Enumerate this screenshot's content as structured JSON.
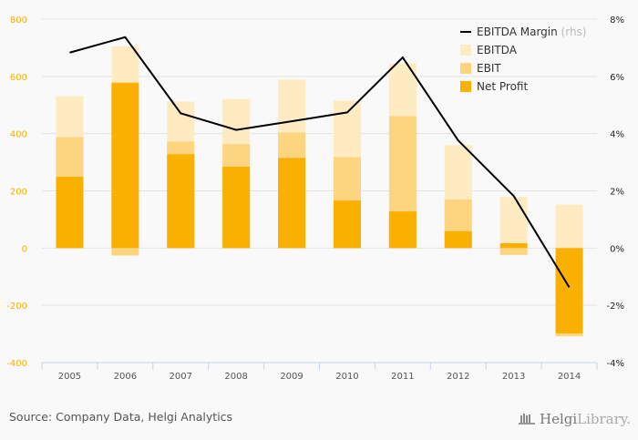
{
  "chart_data": {
    "type": "bar",
    "categories": [
      "2005",
      "2006",
      "2007",
      "2008",
      "2009",
      "2010",
      "2011",
      "2012",
      "2013",
      "2014"
    ],
    "series": [
      {
        "name": "EBITDA",
        "axis": "left",
        "kind": "bar",
        "color": "#ffebc2",
        "values": [
          531,
          705,
          512,
          521,
          588,
          515,
          645,
          360,
          179,
          152
        ]
      },
      {
        "name": "EBIT",
        "axis": "left",
        "kind": "bar",
        "color": "#fdd580",
        "values": [
          388,
          -26,
          372,
          363,
          404,
          318,
          461,
          170,
          -24,
          -308
        ]
      },
      {
        "name": "Net Profit",
        "axis": "left",
        "kind": "bar",
        "color": "#f9b000",
        "values": [
          249,
          578,
          328,
          284,
          315,
          166,
          128,
          59,
          17,
          -298
        ]
      },
      {
        "name": "EBITDA Margin",
        "axis": "right",
        "kind": "line",
        "color": "#000000",
        "values": [
          6.83,
          7.37,
          4.71,
          4.13,
          4.43,
          4.74,
          6.66,
          3.76,
          1.82,
          -1.37
        ]
      }
    ],
    "y_left": {
      "min": -400,
      "max": 800,
      "ticks": [
        800,
        600,
        400,
        200,
        0,
        -200,
        -400
      ],
      "color": "#f7b000"
    },
    "y_right": {
      "min": -4,
      "max": 8,
      "ticks": [
        "8%",
        "6%",
        "4%",
        "2%",
        "0%",
        "-2%",
        "-4%"
      ],
      "tick_values": [
        8,
        6,
        4,
        2,
        0,
        -2,
        -4
      ]
    },
    "legend": {
      "placement": "top-right",
      "items": [
        {
          "label": "EBITDA Margin",
          "suffix": "(rhs)",
          "type": "line",
          "color": "#000000"
        },
        {
          "label": "EBITDA",
          "type": "box",
          "color": "#ffebc2"
        },
        {
          "label": "EBIT",
          "type": "box",
          "color": "#fdd580"
        },
        {
          "label": "Net Profit",
          "type": "box",
          "color": "#f9b000"
        }
      ]
    },
    "grid": true,
    "title": "",
    "xlabel": "",
    "ylabel": ""
  },
  "footer": {
    "source": "Source: Company Data, Helgi Analytics",
    "logo_bold": "Helgi",
    "logo_light": "Library."
  }
}
